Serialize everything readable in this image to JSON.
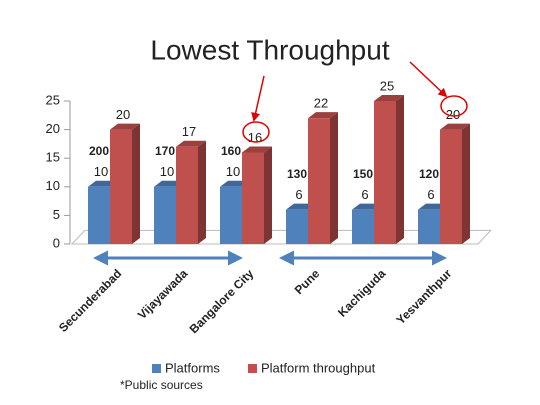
{
  "chart_data": {
    "type": "bar3d",
    "title": "Lowest Throughput",
    "categories": [
      "Secunderabad",
      "Vijayawada",
      "Bangalore City",
      "Pune",
      "Kachiguda",
      "Yesvanthpur"
    ],
    "series": [
      {
        "name": "Platforms",
        "color": "#4f81bd",
        "values": [
          10,
          10,
          10,
          6,
          6,
          6
        ]
      },
      {
        "name": "Platform throughput",
        "color": "#c0504d",
        "values": [
          20,
          17,
          16,
          22,
          25,
          20
        ]
      }
    ],
    "annotations": [
      200,
      170,
      160,
      130,
      150,
      120
    ],
    "annotation_color": "#c00000",
    "ylim": [
      0,
      25
    ],
    "yticks": [
      0,
      5,
      10,
      15,
      20,
      25
    ],
    "footnote": "*Public sources"
  }
}
